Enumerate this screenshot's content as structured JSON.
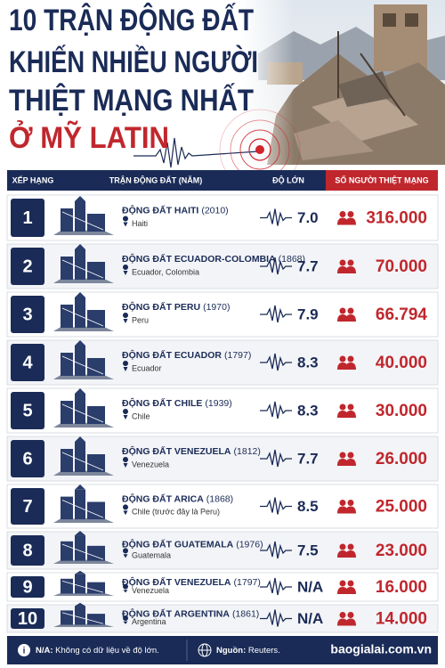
{
  "header": {
    "title_lines": [
      "10 TRẬN ĐỘNG ĐẤT",
      "KHIẾN NHIỀU NGƯỜI",
      "THIỆT MẠNG NHẤT",
      "Ở MỸ LATIN"
    ]
  },
  "table": {
    "columns": [
      "XẾP HẠNG",
      "TRẬN ĐỘNG ĐẤT (NĂM)",
      "ĐỘ LỚN",
      "SỐ NGƯỜI THIỆT MẠNG"
    ],
    "rows": [
      {
        "rank": "1",
        "name": "ĐỘNG ĐẤT HAITI",
        "year": "(2010)",
        "location": "Haiti",
        "magnitude": "7.0",
        "deaths": "316.000"
      },
      {
        "rank": "2",
        "name": "ĐỘNG ĐẤT ECUADOR-COLOMBIA",
        "year": "(1868)",
        "location": "Ecuador, Colombia",
        "magnitude": "7.7",
        "deaths": "70.000"
      },
      {
        "rank": "3",
        "name": "ĐỘNG ĐẤT PERU",
        "year": "(1970)",
        "location": "Peru",
        "magnitude": "7.9",
        "deaths": "66.794"
      },
      {
        "rank": "4",
        "name": "ĐỘNG ĐẤT ECUADOR",
        "year": "(1797)",
        "location": "Ecuador",
        "magnitude": "8.3",
        "deaths": "40.000"
      },
      {
        "rank": "5",
        "name": "ĐỘNG ĐẤT CHILE",
        "year": "(1939)",
        "location": "Chile",
        "magnitude": "8.3",
        "deaths": "30.000"
      },
      {
        "rank": "6",
        "name": "ĐỘNG ĐẤT VENEZUELA",
        "year": "(1812)",
        "location": "Venezuela",
        "magnitude": "7.7",
        "deaths": "26.000"
      },
      {
        "rank": "7",
        "name": "ĐỘNG ĐẤT ARICA",
        "year": "(1868)",
        "location": "Chile (trước đây là Peru)",
        "magnitude": "8.5",
        "deaths": "25.000"
      },
      {
        "rank": "8",
        "name": "ĐỘNG ĐẤT GUATEMALA",
        "year": "(1976)",
        "location": "Guatemala",
        "magnitude": "7.5",
        "deaths": "23.000"
      },
      {
        "rank": "9",
        "name": "ĐỘNG ĐẤT VENEZUELA",
        "year": "(1797)",
        "location": "Venezuela",
        "magnitude": "N/A",
        "deaths": "16.000"
      },
      {
        "rank": "10",
        "name": "ĐỘNG ĐẤT ARGENTINA",
        "year": "(1861)",
        "location": "Argentina",
        "magnitude": "N/A",
        "deaths": "14.000"
      }
    ]
  },
  "footer": {
    "note_label": "N/A:",
    "note": "Không có dữ liệu về độ lớn.",
    "source_label": "Nguồn:",
    "source": "Reuters.",
    "site": "baogialai.com.vn"
  }
}
